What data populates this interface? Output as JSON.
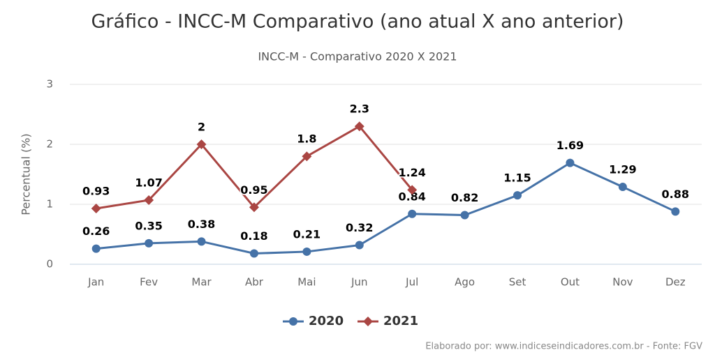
{
  "chart_data": {
    "type": "line",
    "title": "Gráfico - INCC-M Comparativo (ano atual X ano anterior)",
    "subtitle": "INCC-M - Comparativo 2020 X 2021",
    "y_label": "Percentual (%)",
    "credit": "Elaborado por: www.indiceseindicadores.com.br - Fonte: FGV",
    "categories": [
      "Jan",
      "Fev",
      "Mar",
      "Abr",
      "Mai",
      "Jun",
      "Jul",
      "Ago",
      "Set",
      "Out",
      "Nov",
      "Dez"
    ],
    "series": [
      {
        "name": "2020",
        "color": "#4572a7",
        "marker": "circle",
        "values": [
          0.26,
          0.35,
          0.38,
          0.18,
          0.21,
          0.32,
          0.84,
          0.82,
          1.15,
          1.69,
          1.29,
          0.88
        ]
      },
      {
        "name": "2021",
        "color": "#aa4643",
        "marker": "diamond",
        "values": [
          0.93,
          1.07,
          2,
          0.95,
          1.8,
          2.3,
          1.24,
          null,
          null,
          null,
          null,
          null
        ]
      }
    ],
    "ylim": [
      0,
      3
    ],
    "yticks": [
      0,
      1,
      2,
      3
    ],
    "grid": true,
    "legend": "bottom"
  }
}
